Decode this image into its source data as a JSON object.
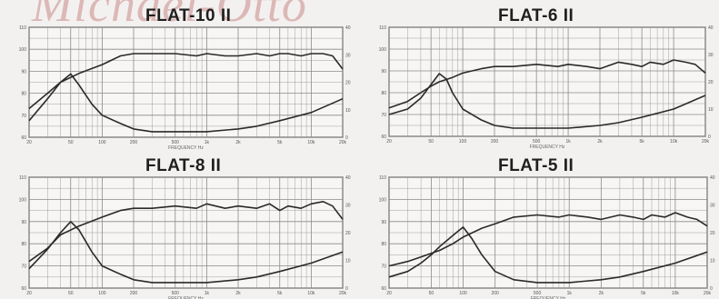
{
  "watermark": "Michael-Otto",
  "colors": {
    "background": "#f3f1ef",
    "grid": "#8a8a8a",
    "curve": "#2a2a2a",
    "watermark": "#c98a8a"
  },
  "chart_data": [
    {
      "type": "line",
      "title": "FLAT-10 II",
      "xlabel": "FREQUENCY Hz",
      "x_scale": "log",
      "xlim": [
        20,
        20000
      ],
      "x_ticks": [
        "20",
        "50",
        "100",
        "200",
        "500",
        "1k",
        "2k",
        "5k",
        "10k",
        "20k"
      ],
      "left_ylim": [
        60,
        110
      ],
      "right_ylim": [
        0,
        40
      ],
      "grid": true,
      "series": [
        {
          "axis": "left",
          "x": [
            20,
            30,
            40,
            60,
            100,
            150,
            200,
            300,
            500,
            800,
            1000,
            1500,
            2000,
            3000,
            4000,
            5000,
            6000,
            8000,
            10000,
            13000,
            16000,
            20000
          ],
          "y": [
            73,
            80,
            85,
            89,
            93,
            97,
            98,
            98,
            98,
            97,
            98,
            97,
            97,
            98,
            97,
            98,
            98,
            97,
            98,
            98,
            97,
            91
          ]
        },
        {
          "axis": "right",
          "x": [
            20,
            30,
            40,
            50,
            60,
            80,
            100,
            150,
            200,
            300,
            500,
            1000,
            2000,
            3000,
            5000,
            10000,
            20000
          ],
          "y": [
            6,
            14,
            20,
            23,
            19,
            12,
            8,
            5,
            3,
            2,
            2,
            2,
            3,
            4,
            6,
            9,
            14
          ]
        }
      ]
    },
    {
      "type": "line",
      "title": "FLAT-6 II",
      "xlabel": "FREQUENCY Hz",
      "x_scale": "log",
      "xlim": [
        20,
        20000
      ],
      "x_ticks": [
        "20",
        "50",
        "100",
        "200",
        "500",
        "1k",
        "2k",
        "5k",
        "10k",
        "20k"
      ],
      "left_ylim": [
        60,
        110
      ],
      "right_ylim": [
        0,
        40
      ],
      "grid": true,
      "series": [
        {
          "axis": "left",
          "x": [
            20,
            30,
            40,
            50,
            60,
            80,
            100,
            150,
            200,
            300,
            500,
            800,
            1000,
            1500,
            2000,
            3000,
            4000,
            5000,
            6000,
            8000,
            10000,
            13000,
            16000,
            20000
          ],
          "y": [
            73,
            76,
            80,
            83,
            85,
            87,
            89,
            91,
            92,
            92,
            93,
            92,
            93,
            92,
            91,
            94,
            93,
            92,
            94,
            93,
            95,
            94,
            93,
            89
          ]
        },
        {
          "axis": "right",
          "x": [
            20,
            30,
            40,
            50,
            60,
            70,
            80,
            100,
            150,
            200,
            300,
            500,
            1000,
            2000,
            3000,
            5000,
            10000,
            20000
          ],
          "y": [
            8,
            10,
            14,
            19,
            23,
            21,
            16,
            10,
            6,
            4,
            3,
            3,
            3,
            4,
            5,
            7,
            10,
            15
          ]
        }
      ]
    },
    {
      "type": "line",
      "title": "FLAT-8 II",
      "xlabel": "FREQUENCY Hz",
      "x_scale": "log",
      "xlim": [
        20,
        20000
      ],
      "x_ticks": [
        "20",
        "50",
        "100",
        "200",
        "500",
        "1k",
        "2k",
        "5k",
        "10k",
        "20k"
      ],
      "left_ylim": [
        60,
        110
      ],
      "right_ylim": [
        0,
        40
      ],
      "grid": true,
      "series": [
        {
          "axis": "left",
          "x": [
            20,
            30,
            40,
            60,
            100,
            150,
            200,
            300,
            500,
            800,
            1000,
            1500,
            2000,
            3000,
            4000,
            5000,
            6000,
            8000,
            10000,
            13000,
            16000,
            20000
          ],
          "y": [
            72,
            78,
            84,
            88,
            92,
            95,
            96,
            96,
            97,
            96,
            98,
            96,
            97,
            96,
            98,
            95,
            97,
            96,
            98,
            99,
            97,
            91
          ]
        },
        {
          "axis": "right",
          "x": [
            20,
            30,
            40,
            50,
            60,
            80,
            100,
            150,
            200,
            300,
            500,
            1000,
            2000,
            3000,
            5000,
            10000,
            20000
          ],
          "y": [
            7,
            14,
            20,
            24,
            21,
            13,
            8,
            5,
            3,
            2,
            2,
            2,
            3,
            4,
            6,
            9,
            13
          ]
        }
      ]
    },
    {
      "type": "line",
      "title": "FLAT-5 II",
      "xlabel": "FREQUENCY Hz",
      "x_scale": "log",
      "xlim": [
        20,
        20000
      ],
      "x_ticks": [
        "20",
        "50",
        "100",
        "200",
        "500",
        "1k",
        "2k",
        "5k",
        "10k",
        "20k"
      ],
      "left_ylim": [
        60,
        110
      ],
      "right_ylim": [
        0,
        40
      ],
      "grid": true,
      "series": [
        {
          "axis": "left",
          "x": [
            20,
            30,
            40,
            60,
            80,
            100,
            150,
            200,
            300,
            500,
            800,
            1000,
            1500,
            2000,
            3000,
            4000,
            5000,
            6000,
            8000,
            10000,
            13000,
            16000,
            20000
          ],
          "y": [
            70,
            72,
            74,
            77,
            80,
            83,
            87,
            89,
            92,
            93,
            92,
            93,
            92,
            91,
            93,
            92,
            91,
            93,
            92,
            94,
            92,
            91,
            88
          ]
        },
        {
          "axis": "right",
          "x": [
            20,
            30,
            40,
            50,
            60,
            80,
            100,
            120,
            150,
            200,
            300,
            500,
            1000,
            2000,
            3000,
            5000,
            10000,
            20000
          ],
          "y": [
            4,
            6,
            9,
            12,
            15,
            19,
            22,
            18,
            12,
            6,
            3,
            2,
            2,
            3,
            4,
            6,
            9,
            13
          ]
        }
      ]
    }
  ]
}
